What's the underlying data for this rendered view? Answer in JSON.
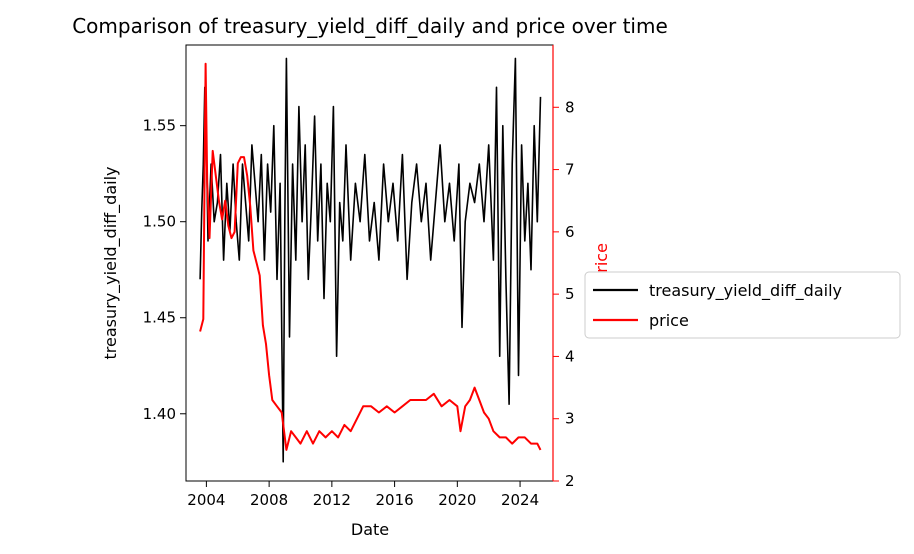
{
  "chart_data": {
    "type": "line",
    "title": "Comparison of treasury_yield_diff_daily and price over time",
    "xlabel": "Date",
    "ylabel_left": "treasury_yield_diff_daily",
    "ylabel_right": "price",
    "xlim": [
      2002.7,
      2026.1
    ],
    "ylim_left": [
      1.365,
      1.592
    ],
    "ylim_right": [
      2.0,
      9.0
    ],
    "x_ticks": [
      2004,
      2008,
      2012,
      2016,
      2020,
      2024
    ],
    "x_tick_labels": [
      "2004",
      "2008",
      "2012",
      "2016",
      "2020",
      "2024"
    ],
    "y_left_ticks": [
      1.4,
      1.45,
      1.5,
      1.55
    ],
    "y_left_tick_labels": [
      "1.40",
      "1.45",
      "1.50",
      "1.55"
    ],
    "y_right_ticks": [
      2,
      3,
      4,
      5,
      6,
      7,
      8
    ],
    "y_right_tick_labels": [
      "2",
      "3",
      "4",
      "5",
      "6",
      "7",
      "8"
    ],
    "grid": false,
    "legend_position": "right",
    "colors": {
      "treasury": "#000000",
      "price": "#ff0000"
    },
    "series": [
      {
        "name": "treasury_yield_diff_daily",
        "axis": "left",
        "color": "#000000",
        "x": [
          2003.6,
          2003.7,
          2003.8,
          2003.9,
          2004.0,
          2004.1,
          2004.3,
          2004.5,
          2004.7,
          2004.9,
          2005.1,
          2005.3,
          2005.5,
          2005.7,
          2005.9,
          2006.1,
          2006.3,
          2006.5,
          2006.7,
          2006.9,
          2007.1,
          2007.3,
          2007.5,
          2007.7,
          2007.9,
          2008.1,
          2008.3,
          2008.5,
          2008.7,
          2008.9,
          2009.0,
          2009.1,
          2009.3,
          2009.5,
          2009.7,
          2009.9,
          2010.1,
          2010.3,
          2010.5,
          2010.7,
          2010.9,
          2011.1,
          2011.3,
          2011.5,
          2011.7,
          2011.9,
          2012.1,
          2012.3,
          2012.5,
          2012.7,
          2012.9,
          2013.2,
          2013.5,
          2013.8,
          2014.1,
          2014.4,
          2014.7,
          2015.0,
          2015.3,
          2015.6,
          2015.9,
          2016.2,
          2016.5,
          2016.8,
          2017.1,
          2017.4,
          2017.7,
          2018.0,
          2018.3,
          2018.6,
          2018.9,
          2019.2,
          2019.5,
          2019.8,
          2020.1,
          2020.3,
          2020.5,
          2020.8,
          2021.1,
          2021.4,
          2021.7,
          2022.0,
          2022.3,
          2022.5,
          2022.7,
          2022.9,
          2023.1,
          2023.3,
          2023.5,
          2023.7,
          2023.9,
          2024.1,
          2024.3,
          2024.5,
          2024.7,
          2024.9,
          2025.1,
          2025.3
        ],
        "values": [
          1.47,
          1.505,
          1.53,
          1.57,
          1.54,
          1.49,
          1.53,
          1.5,
          1.51,
          1.535,
          1.48,
          1.52,
          1.495,
          1.53,
          1.5,
          1.48,
          1.53,
          1.51,
          1.49,
          1.54,
          1.52,
          1.5,
          1.535,
          1.48,
          1.53,
          1.505,
          1.55,
          1.47,
          1.52,
          1.375,
          1.5,
          1.585,
          1.44,
          1.53,
          1.48,
          1.56,
          1.5,
          1.54,
          1.47,
          1.51,
          1.555,
          1.49,
          1.53,
          1.46,
          1.52,
          1.5,
          1.56,
          1.43,
          1.51,
          1.49,
          1.54,
          1.48,
          1.52,
          1.5,
          1.535,
          1.49,
          1.51,
          1.48,
          1.53,
          1.5,
          1.52,
          1.49,
          1.535,
          1.47,
          1.51,
          1.53,
          1.5,
          1.52,
          1.48,
          1.51,
          1.54,
          1.5,
          1.52,
          1.49,
          1.53,
          1.445,
          1.5,
          1.52,
          1.51,
          1.53,
          1.5,
          1.54,
          1.48,
          1.57,
          1.43,
          1.55,
          1.47,
          1.405,
          1.53,
          1.585,
          1.42,
          1.54,
          1.49,
          1.52,
          1.475,
          1.55,
          1.5,
          1.565
        ]
      },
      {
        "name": "price",
        "axis": "right",
        "color": "#ff0000",
        "x": [
          2003.6,
          2003.8,
          2003.95,
          2004.05,
          2004.2,
          2004.4,
          2004.6,
          2004.8,
          2005.0,
          2005.2,
          2005.4,
          2005.6,
          2005.8,
          2006.0,
          2006.2,
          2006.4,
          2006.6,
          2006.8,
          2007.0,
          2007.2,
          2007.4,
          2007.6,
          2007.8,
          2008.0,
          2008.2,
          2008.5,
          2008.8,
          2009.1,
          2009.4,
          2009.7,
          2010.0,
          2010.4,
          2010.8,
          2011.2,
          2011.6,
          2012.0,
          2012.4,
          2012.8,
          2013.2,
          2013.6,
          2014.0,
          2014.5,
          2015.0,
          2015.5,
          2016.0,
          2016.5,
          2017.0,
          2017.5,
          2018.0,
          2018.5,
          2019.0,
          2019.5,
          2020.0,
          2020.2,
          2020.5,
          2020.8,
          2021.1,
          2021.4,
          2021.7,
          2022.0,
          2022.3,
          2022.7,
          2023.1,
          2023.5,
          2023.9,
          2024.3,
          2024.7,
          2025.1,
          2025.3
        ],
        "values": [
          4.4,
          4.6,
          8.7,
          6.8,
          5.9,
          7.3,
          6.9,
          6.5,
          6.2,
          6.5,
          6.1,
          5.9,
          6.0,
          7.1,
          7.2,
          7.2,
          6.9,
          6.4,
          5.7,
          5.5,
          5.3,
          4.5,
          4.2,
          3.7,
          3.3,
          3.2,
          3.1,
          2.5,
          2.8,
          2.7,
          2.6,
          2.8,
          2.6,
          2.8,
          2.7,
          2.8,
          2.7,
          2.9,
          2.8,
          3.0,
          3.2,
          3.2,
          3.1,
          3.2,
          3.1,
          3.2,
          3.3,
          3.3,
          3.3,
          3.4,
          3.2,
          3.3,
          3.2,
          2.8,
          3.2,
          3.3,
          3.5,
          3.3,
          3.1,
          3.0,
          2.8,
          2.7,
          2.7,
          2.6,
          2.7,
          2.7,
          2.6,
          2.6,
          2.5
        ]
      }
    ]
  }
}
